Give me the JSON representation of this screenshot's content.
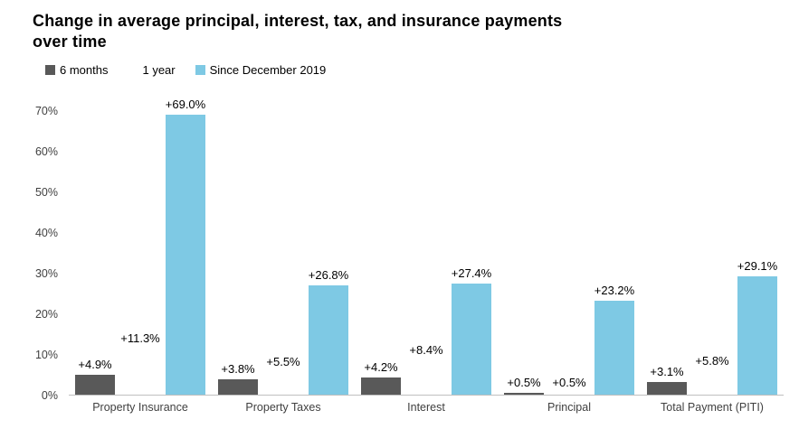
{
  "title": "Change in average principal, interest, tax, and insurance payments over time",
  "legend": [
    {
      "label": "6 months",
      "color": "#595959"
    },
    {
      "label": "1 year",
      "color": "#ffffff"
    },
    {
      "label": "Since December 2019",
      "color": "#7ec9e4"
    }
  ],
  "chart_data": {
    "type": "bar",
    "title": "Change in average principal, interest, tax, and insurance payments over time",
    "categories": [
      "Property Insurance",
      "Property Taxes",
      "Interest",
      "Principal",
      "Total Payment (PITI)"
    ],
    "series": [
      {
        "name": "6 months",
        "color": "#595959",
        "values": [
          4.9,
          3.8,
          4.2,
          0.5,
          3.1
        ],
        "labels": [
          "+4.9%",
          "+3.8%",
          "+4.2%",
          "+0.5%",
          "+3.1%"
        ]
      },
      {
        "name": "1 year",
        "color": "#ffffff",
        "values": [
          11.3,
          5.5,
          8.4,
          0.5,
          5.8
        ],
        "labels": [
          "+11.3%",
          "+5.5%",
          "+8.4%",
          "+0.5%",
          "+5.8%"
        ]
      },
      {
        "name": "Since December 2019",
        "color": "#7ec9e4",
        "values": [
          69.0,
          26.8,
          27.4,
          23.2,
          29.1
        ],
        "labels": [
          "+69.0%",
          "+26.8%",
          "+27.4%",
          "+23.2%",
          "+29.1%"
        ]
      }
    ],
    "xlabel": "",
    "ylabel": "",
    "ylim": [
      0,
      70
    ],
    "yticks": [
      "0%",
      "10%",
      "20%",
      "30%",
      "40%",
      "50%",
      "60%",
      "70%"
    ],
    "grid": false,
    "legend_position": "top-left",
    "axis_baseline_color": "#bfbfbf"
  }
}
